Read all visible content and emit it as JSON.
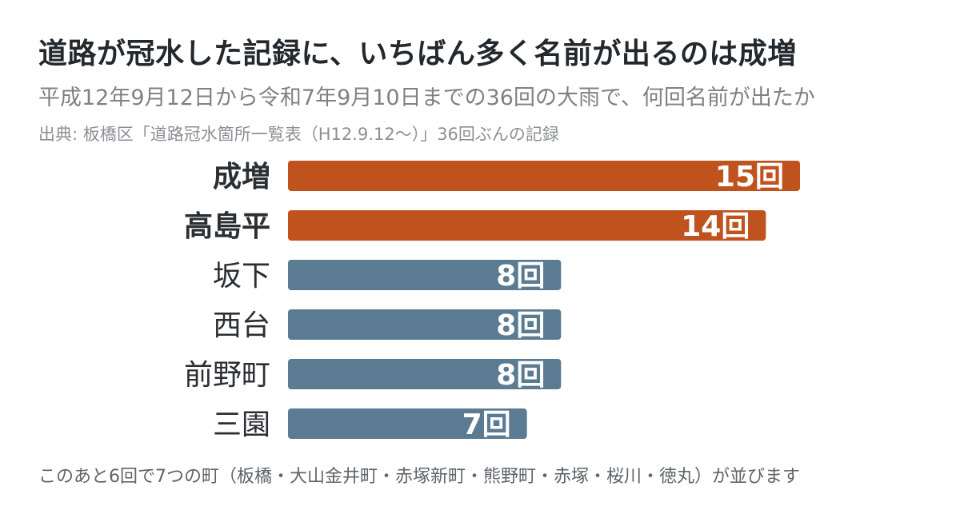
{
  "title": "道路が冠水した記録に、いちばん多く名前が出るのは成増",
  "subtitle": "平成12年9月12日から令和7年9月10日までの36回の大雨で、何回名前が出たか",
  "source": "出典: 板橋区「道路冠水箇所一覧表（H12.9.12〜）」36回ぶんの記録",
  "footnote": "このあと6回で7つの町（板橋・大山金井町・赤塚新町・熊野町・赤塚・桜川・徳丸）が並びます",
  "colors": {
    "highlight": "#c0521e",
    "normal": "#5b7b92",
    "label": "#2b2f33",
    "value_text": "#ffffff"
  },
  "chart_data": {
    "type": "bar",
    "orientation": "horizontal",
    "unit": "回",
    "categories": [
      "成増",
      "高島平",
      "坂下",
      "西台",
      "前野町",
      "三園"
    ],
    "values": [
      15,
      14,
      8,
      8,
      8,
      7
    ],
    "highlighted": [
      true,
      true,
      false,
      false,
      false,
      false
    ],
    "value_labels": [
      "15回",
      "14回",
      "8回",
      "8回",
      "8回",
      "7回"
    ],
    "xlim": [
      0,
      15
    ],
    "grid": false,
    "legend": "none"
  }
}
